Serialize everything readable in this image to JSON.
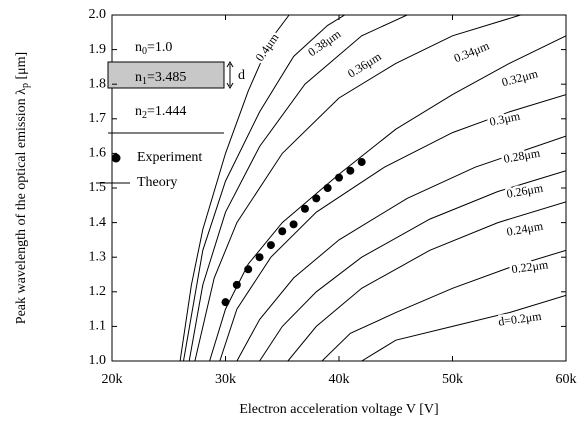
{
  "chart_data": {
    "type": "scatter-line",
    "xlabel": "Electron acceleration voltage V [V]",
    "ylabel_parts": [
      "Peak wavelength of the optical emission λ",
      "p",
      " [μm]"
    ],
    "xlim": [
      20000,
      60000
    ],
    "xticks": [
      {
        "value": 20000,
        "label": "20k"
      },
      {
        "value": 30000,
        "label": "30k"
      },
      {
        "value": 40000,
        "label": "40k"
      },
      {
        "value": 50000,
        "label": "50k"
      },
      {
        "value": 60000,
        "label": "60k"
      }
    ],
    "ylim": [
      1,
      2
    ],
    "yticks": [
      {
        "value": 1,
        "label": "1.0"
      },
      1.1,
      1.2,
      1.3,
      1.4,
      1.5,
      1.6,
      1.7,
      1.8,
      1.9,
      {
        "value": 2,
        "label": "2.0"
      }
    ],
    "series": [
      {
        "name": "Experiment",
        "color": "#000000",
        "x": [
          30000,
          31000,
          32000,
          33000,
          34000,
          35000,
          36000,
          37000,
          38000,
          39000,
          40000,
          41000,
          42000
        ],
        "values": [
          1.17,
          1.22,
          1.265,
          1.3,
          1.335,
          1.375,
          1.395,
          1.44,
          1.47,
          1.5,
          1.53,
          1.55,
          1.575
        ]
      },
      {
        "name": "Theory",
        "color": "#000000",
        "curves": [
          {
            "label": "0.4μm",
            "x": [
              26000,
              27000,
              28000,
              30000,
              32000,
              34000,
              35600
            ],
            "values": [
              1.0,
              1.22,
              1.38,
              1.6,
              1.78,
              1.93,
              2.0
            ]
          },
          {
            "label": "0.38μm",
            "x": [
              26300,
              28000,
              30000,
              33000,
              36000,
              39000,
              40500
            ],
            "values": [
              1.0,
              1.32,
              1.52,
              1.72,
              1.88,
              1.97,
              2.0
            ]
          },
          {
            "label": "0.36μm",
            "x": [
              26800,
              28000,
              30000,
              33000,
              37000,
              42000,
              46000
            ],
            "values": [
              1.0,
              1.22,
              1.43,
              1.62,
              1.8,
              1.94,
              2.0
            ]
          },
          {
            "label": "0.34μm",
            "x": [
              27300,
              29000,
              31000,
              35000,
              40000,
              45000,
              50000,
              56000
            ],
            "values": [
              1.0,
              1.24,
              1.4,
              1.6,
              1.76,
              1.86,
              1.94,
              2.0
            ]
          },
          {
            "label": "0.32μm",
            "x": [
              28600,
              30000,
              32000,
              35000,
              40000,
              45000,
              50000,
              55000,
              60000
            ],
            "values": [
              1.0,
              1.15,
              1.28,
              1.4,
              1.54,
              1.67,
              1.77,
              1.86,
              1.94
            ]
          },
          {
            "label": "0.3μm",
            "x": [
              29500,
              31000,
              34000,
              38000,
              44000,
              50000,
              55000,
              60000
            ],
            "values": [
              1.0,
              1.15,
              1.3,
              1.43,
              1.56,
              1.66,
              1.72,
              1.77
            ]
          },
          {
            "label": "0.28μm",
            "x": [
              31000,
              33000,
              36000,
              40000,
              46000,
              52000,
              60000
            ],
            "values": [
              1.0,
              1.12,
              1.24,
              1.35,
              1.47,
              1.56,
              1.65
            ]
          },
          {
            "label": "0.26μm",
            "x": [
              33000,
              35000,
              38000,
              42000,
              48000,
              54000,
              60000
            ],
            "values": [
              1.0,
              1.1,
              1.2,
              1.3,
              1.41,
              1.49,
              1.55
            ]
          },
          {
            "label": "0.24μm",
            "x": [
              35500,
              38000,
              42000,
              48000,
              54000,
              60000
            ],
            "values": [
              1.0,
              1.1,
              1.21,
              1.32,
              1.4,
              1.46
            ]
          },
          {
            "label": "0.22μm",
            "x": [
              38500,
              41000,
              45000,
              50000,
              55000,
              60000
            ],
            "values": [
              1.0,
              1.08,
              1.14,
              1.21,
              1.27,
              1.32
            ]
          },
          {
            "label": "d=0.2μm",
            "x": [
              42000,
              45000,
              50000,
              55000,
              60000
            ],
            "values": [
              1.0,
              1.06,
              1.1,
              1.14,
              1.19
            ]
          }
        ]
      }
    ],
    "inset": {
      "layers": [
        {
          "base": "n",
          "sub": "0",
          "text": "=1.0"
        },
        {
          "base": "n",
          "sub": "1",
          "text": "=3.485"
        },
        {
          "base": "n",
          "sub": "2",
          "text": "=1.444"
        }
      ],
      "thickness_label": "d"
    }
  }
}
